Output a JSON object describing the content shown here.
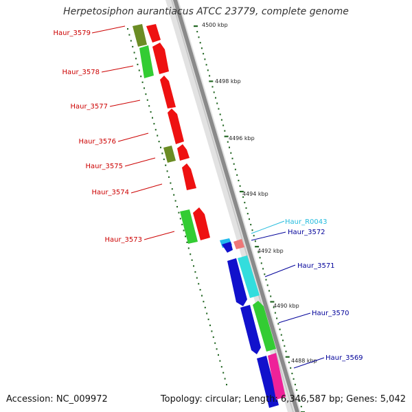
{
  "title": "Herpetosiphon aurantiacus ATCC 23779, complete genome",
  "accession_text": "Accession: NC_009972",
  "topology_text": "Topology: circular; Length: 6,346,587 bp; Genes: 5,042",
  "colors": {
    "left_label": "#cc0000",
    "right_label": "#000099",
    "rna_label": "#22bbdd",
    "backbone": "#999999",
    "tick": "#226622"
  },
  "ruler": {
    "unit": "kbp",
    "ticks": [
      {
        "label": "4500 kbp"
      },
      {
        "label": "4498 kbp"
      },
      {
        "label": "4496 kbp"
      },
      {
        "label": "4494 kbp"
      },
      {
        "label": "4492 kbp"
      },
      {
        "label": "4490 kbp"
      },
      {
        "label": "4488 kbp"
      }
    ]
  },
  "genes_left": [
    {
      "label": "Haur_3579"
    },
    {
      "label": "Haur_3578"
    },
    {
      "label": "Haur_3577"
    },
    {
      "label": "Haur_3576"
    },
    {
      "label": "Haur_3575"
    },
    {
      "label": "Haur_3574"
    },
    {
      "label": "Haur_3573"
    }
  ],
  "genes_right": [
    {
      "label": "Haur_R0043",
      "kind": "rna"
    },
    {
      "label": "Haur_3572",
      "kind": "cds"
    },
    {
      "label": "Haur_3571",
      "kind": "cds"
    },
    {
      "label": "Haur_3570",
      "kind": "cds"
    },
    {
      "label": "Haur_3569",
      "kind": "cds"
    }
  ]
}
